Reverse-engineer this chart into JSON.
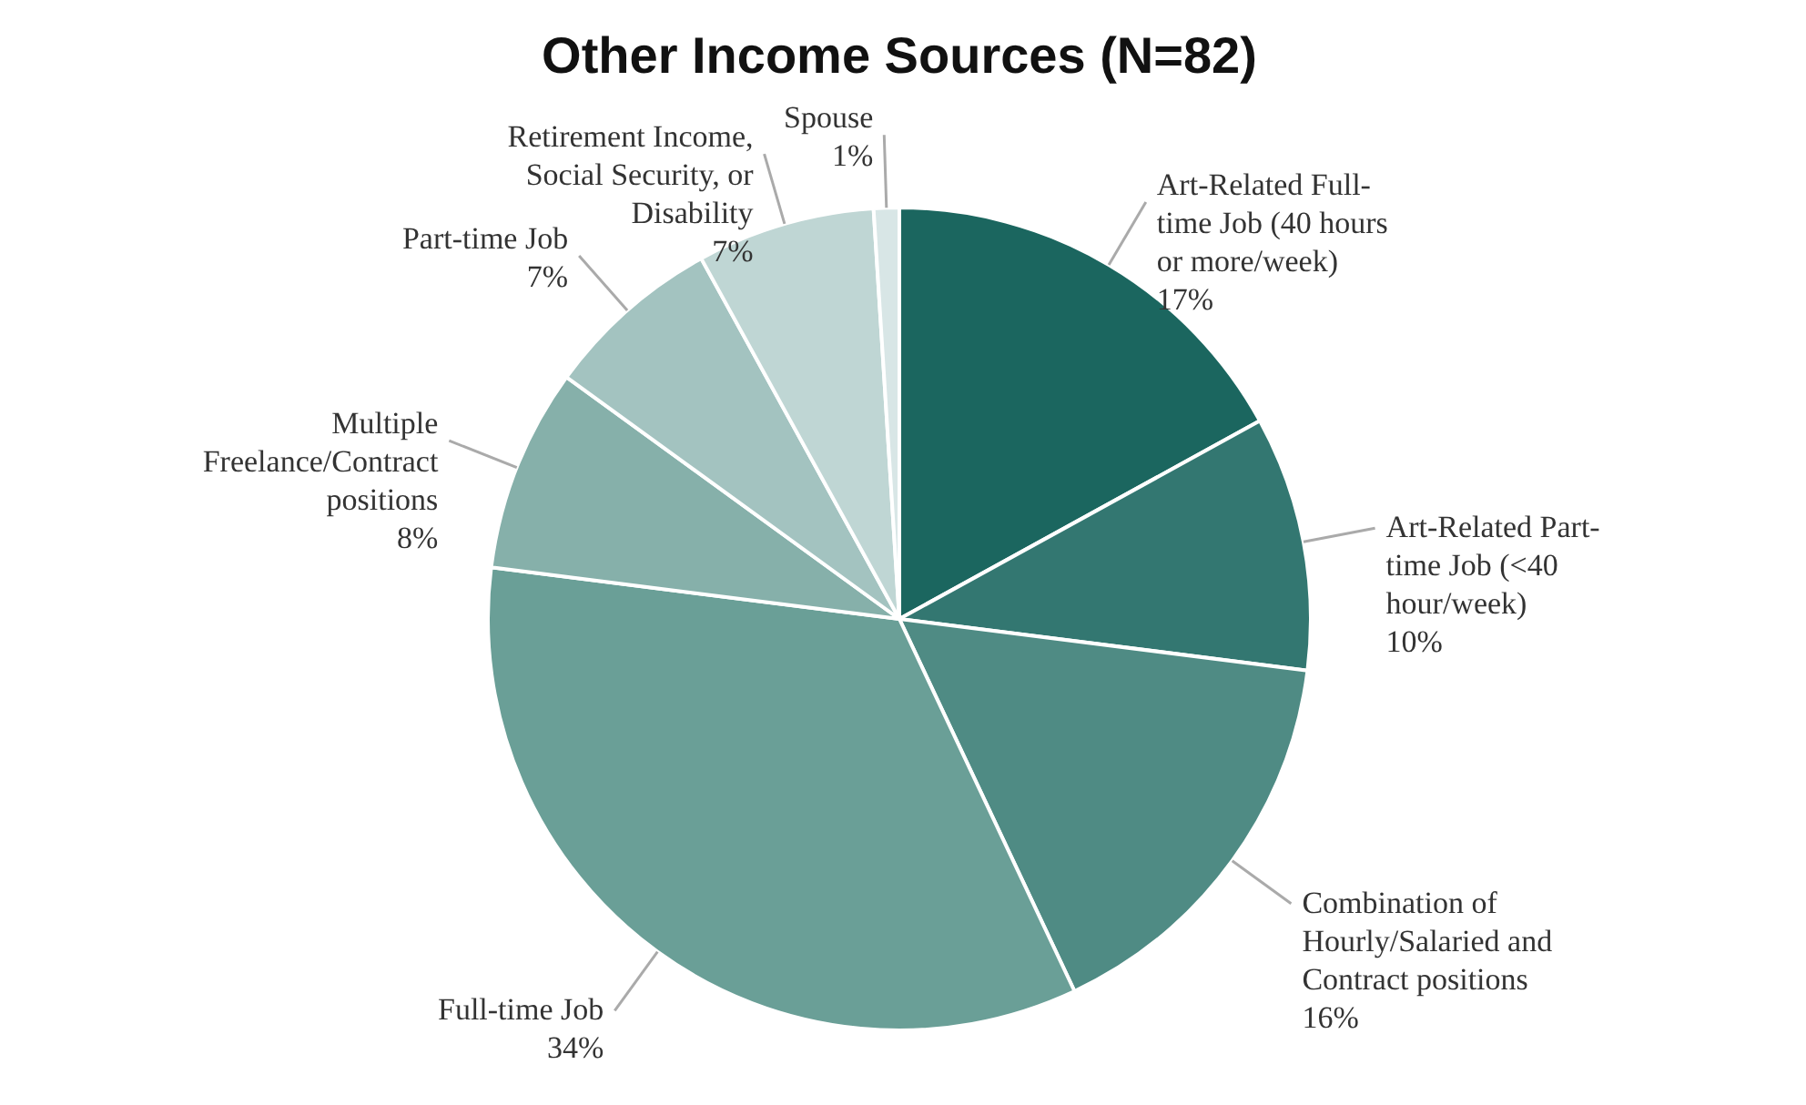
{
  "chart_data": {
    "type": "pie",
    "title": "Other Income Sources (N=82)",
    "categories": [
      "Art-Related Full-time Job (40 hours or more/week)",
      "Art-Related Part-time Job (<40 hour/week)",
      "Combination of Hourly/Salaried and Contract positions",
      "Full-time Job",
      "Multiple Freelance/Contract positions",
      "Part-time Job",
      "Retirement Income, Social Security, or Disability",
      "Spouse"
    ],
    "values": [
      17,
      10,
      16,
      34,
      8,
      7,
      7,
      1
    ],
    "value_labels": [
      "17%",
      "10%",
      "16%",
      "34%",
      "8%",
      "7%",
      "7%",
      "1%"
    ],
    "colors": [
      "#1b665f",
      "#337771",
      "#4f8b84",
      "#6a9f97",
      "#86b0aa",
      "#a3c3c0",
      "#bfd6d4",
      "#d8e6e6"
    ]
  }
}
